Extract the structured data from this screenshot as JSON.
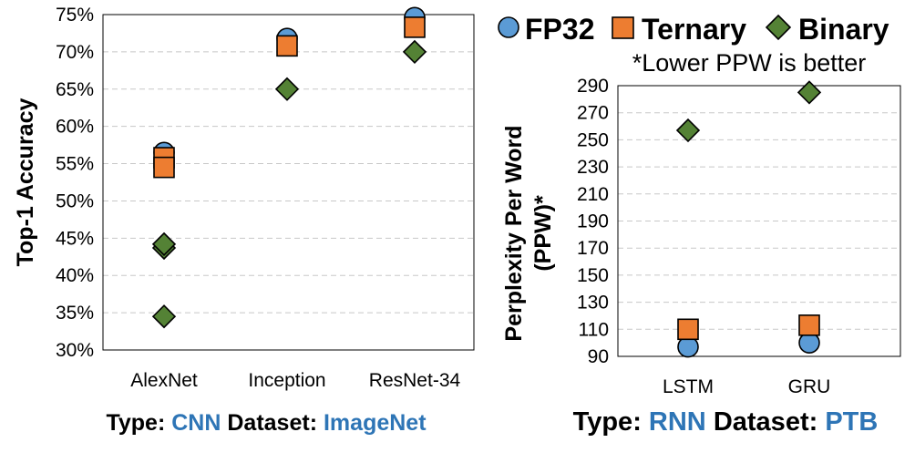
{
  "colors": {
    "fp32": "#5b9bd5",
    "ternary": "#ed7d31",
    "binary": "#548235",
    "accent_text": "#2e75b6",
    "grid": "#c8c8c8"
  },
  "legend": {
    "items": [
      {
        "label": "FP32",
        "marker": "circle"
      },
      {
        "label": "Ternary",
        "marker": "square"
      },
      {
        "label": "Binary",
        "marker": "diamond"
      }
    ],
    "placement": "top-right"
  },
  "chart_data": [
    {
      "type": "scatter",
      "ylabel": "Top-1 Accuracy",
      "categories": [
        "AlexNet",
        "Inception",
        "ResNet-34"
      ],
      "ylim": [
        30,
        75
      ],
      "yticks": [
        "30%",
        "35%",
        "40%",
        "45%",
        "50%",
        "55%",
        "60%",
        "65%",
        "70%",
        "75%"
      ],
      "grid": true,
      "series": [
        {
          "name": "FP32",
          "marker": "circle",
          "points": [
            {
              "category": "AlexNet",
              "value": 56.5
            },
            {
              "category": "Inception",
              "value": 71.8
            },
            {
              "category": "ResNet-34",
              "value": 74.6
            }
          ]
        },
        {
          "name": "Ternary",
          "marker": "square",
          "points": [
            {
              "category": "AlexNet",
              "value": 55.8
            },
            {
              "category": "AlexNet",
              "value": 54.5
            },
            {
              "category": "Inception",
              "value": 70.8
            },
            {
              "category": "ResNet-34",
              "value": 73.3
            }
          ]
        },
        {
          "name": "Binary",
          "marker": "diamond",
          "points": [
            {
              "category": "AlexNet",
              "value": 43.7
            },
            {
              "category": "AlexNet",
              "value": 44.2
            },
            {
              "category": "AlexNet",
              "value": 34.5
            },
            {
              "category": "Inception",
              "value": 65.0
            },
            {
              "category": "ResNet-34",
              "value": 70.0
            }
          ]
        }
      ],
      "caption": {
        "type_label": "Type:",
        "type_value": "CNN",
        "dataset_label": "Dataset:",
        "dataset_value": "ImageNet"
      }
    },
    {
      "type": "scatter",
      "ylabel_line1": "Perplexity Per Word",
      "ylabel_line2": "(PPW)*",
      "note": "*Lower PPW is better",
      "categories": [
        "LSTM",
        "GRU"
      ],
      "ylim": [
        90,
        290
      ],
      "yticks": [
        "90",
        "110",
        "130",
        "150",
        "170",
        "190",
        "210",
        "230",
        "250",
        "270",
        "290"
      ],
      "grid": true,
      "series": [
        {
          "name": "FP32",
          "marker": "circle",
          "points": [
            {
              "category": "LSTM",
              "value": 97
            },
            {
              "category": "GRU",
              "value": 100
            }
          ]
        },
        {
          "name": "Ternary",
          "marker": "square",
          "points": [
            {
              "category": "LSTM",
              "value": 110
            },
            {
              "category": "GRU",
              "value": 113
            }
          ]
        },
        {
          "name": "Binary",
          "marker": "diamond",
          "points": [
            {
              "category": "LSTM",
              "value": 257
            },
            {
              "category": "GRU",
              "value": 285
            }
          ]
        }
      ],
      "caption": {
        "type_label": "Type:",
        "type_value": "RNN",
        "dataset_label": "Dataset:",
        "dataset_value": "PTB"
      }
    }
  ]
}
